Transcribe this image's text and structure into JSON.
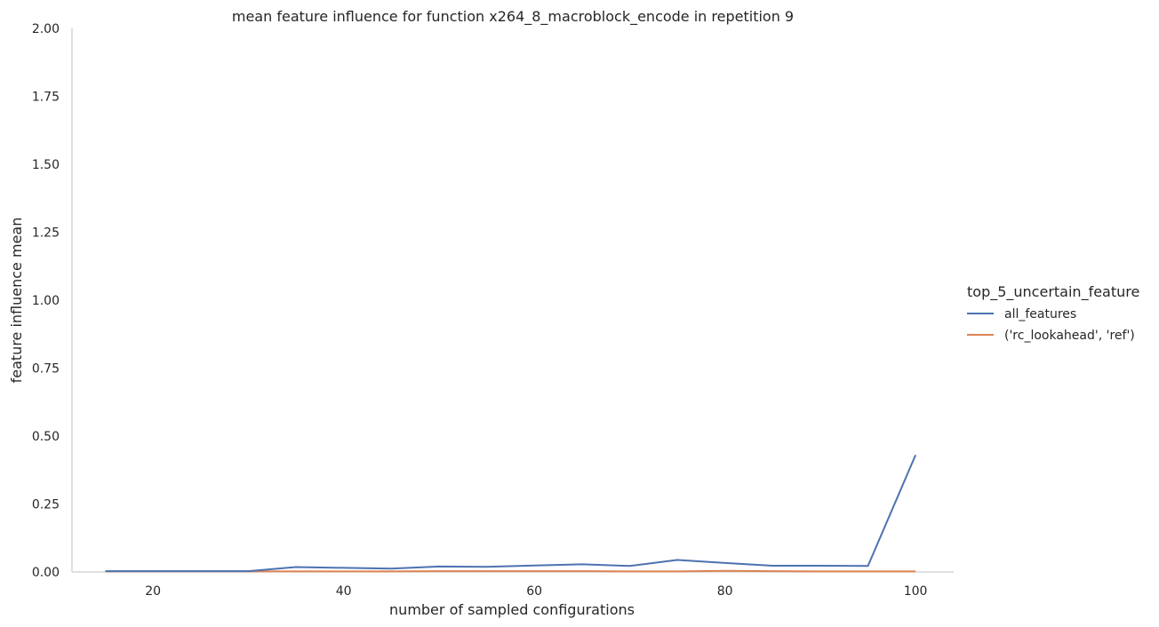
{
  "chart_data": {
    "type": "line",
    "title": "mean feature influence for function x264_8_macroblock_encode in repetition 9",
    "xlabel": "number of sampled configurations",
    "ylabel": "feature influence mean",
    "xlim": [
      11.5,
      104
    ],
    "ylim": [
      0,
      2
    ],
    "xticks": [
      "20",
      "40",
      "60",
      "80",
      "100"
    ],
    "xtick_values": [
      20,
      40,
      60,
      80,
      100
    ],
    "yticks": [
      "0.00",
      "0.25",
      "0.50",
      "0.75",
      "1.00",
      "1.25",
      "1.50",
      "1.75",
      "2.00"
    ],
    "ytick_values": [
      0,
      0.25,
      0.5,
      0.75,
      1.0,
      1.25,
      1.5,
      1.75,
      2.0
    ],
    "grid": false,
    "legend": {
      "title": "top_5_uncertain_feature",
      "placement": "right"
    },
    "x": [
      15,
      20,
      25,
      30,
      35,
      40,
      45,
      50,
      55,
      60,
      65,
      70,
      75,
      80,
      85,
      90,
      95,
      100
    ],
    "series": [
      {
        "name": "all_features",
        "color": "#4c72b0",
        "values": [
          0.003,
          0.003,
          0.003,
          0.003,
          0.018,
          0.015,
          0.012,
          0.02,
          0.019,
          0.024,
          0.028,
          0.022,
          0.044,
          0.033,
          0.023,
          0.023,
          0.022,
          0.43
        ]
      },
      {
        "name": "('rc_lookahead', 'ref')",
        "color": "#dd8452",
        "values": [
          0.002,
          0.002,
          0.002,
          0.002,
          0.002,
          0.002,
          0.002,
          0.003,
          0.003,
          0.003,
          0.003,
          0.002,
          0.002,
          0.004,
          0.003,
          0.002,
          0.002,
          0.002
        ]
      }
    ]
  }
}
